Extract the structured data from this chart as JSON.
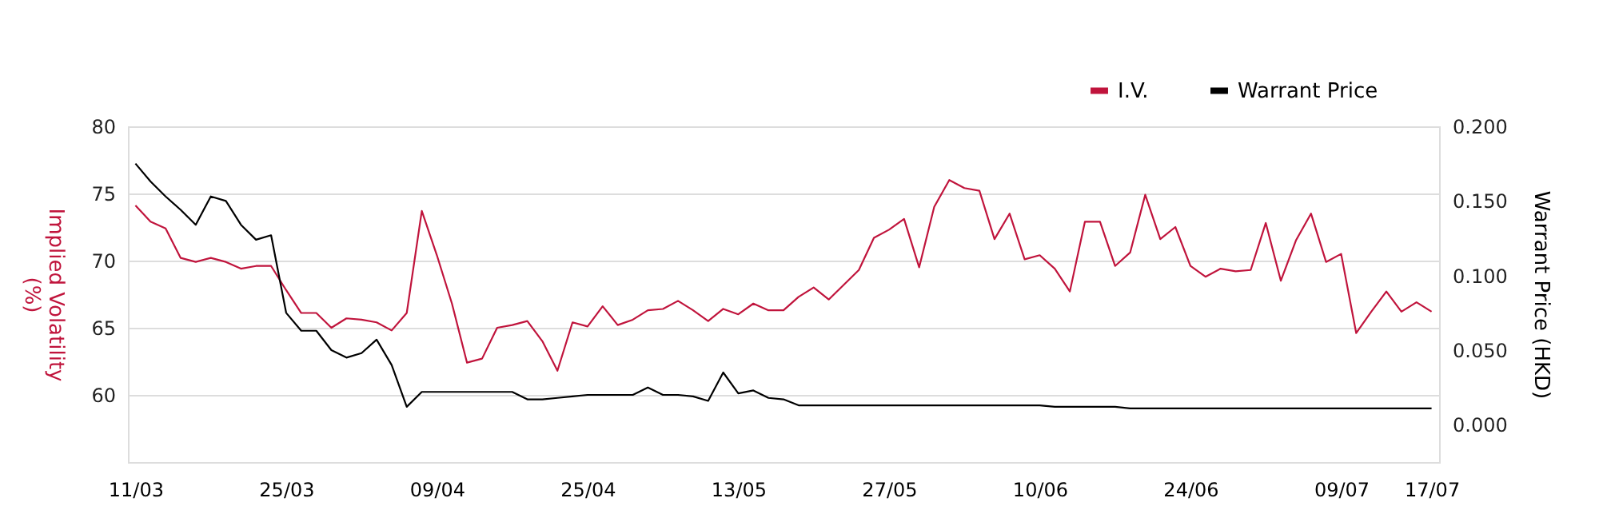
{
  "chart_data": {
    "type": "line",
    "ylabel": "Implied Volatility (%)",
    "y2label": "Warrant Price (HKD)",
    "categories": [
      "11/03",
      null,
      null,
      null,
      null,
      null,
      null,
      null,
      null,
      null,
      "25/03",
      null,
      null,
      null,
      null,
      null,
      null,
      null,
      null,
      null,
      "09/04",
      null,
      null,
      null,
      null,
      null,
      null,
      null,
      null,
      null,
      "25/04",
      null,
      null,
      null,
      null,
      null,
      null,
      null,
      null,
      null,
      "13/05",
      null,
      null,
      null,
      null,
      null,
      null,
      null,
      null,
      null,
      "27/05",
      null,
      null,
      null,
      null,
      null,
      null,
      null,
      null,
      null,
      "10/06",
      null,
      null,
      null,
      null,
      null,
      null,
      null,
      null,
      null,
      "24/06",
      null,
      null,
      null,
      null,
      null,
      null,
      null,
      null,
      null,
      "09/07",
      null,
      null,
      null,
      null,
      null,
      "17/07"
    ],
    "series": [
      {
        "name": "I.V.",
        "color": "#c0143c",
        "values": [
          74.1,
          72.9,
          72.4,
          70.2,
          69.9,
          70.2,
          69.9,
          69.4,
          69.6,
          69.6,
          67.8,
          66.1,
          66.1,
          65.0,
          65.7,
          65.6,
          65.4,
          64.8,
          66.1,
          73.7,
          70.4,
          66.8,
          62.4,
          62.7,
          65.0,
          65.2,
          65.5,
          64.0,
          61.8,
          65.4,
          65.1,
          66.6,
          65.2,
          65.6,
          66.3,
          66.4,
          67.0,
          66.3,
          65.5,
          66.4,
          66.0,
          66.8,
          66.3,
          66.3,
          67.3,
          68.0,
          67.1,
          68.2,
          69.3,
          71.7,
          72.3,
          73.1,
          69.5,
          74.0,
          76.0,
          75.4,
          75.2,
          71.6,
          73.5,
          70.1,
          70.4,
          69.4,
          67.7,
          72.9,
          72.9,
          69.6,
          70.6,
          74.9,
          71.6,
          72.5,
          69.6,
          68.8,
          69.4,
          69.2,
          69.3,
          72.8,
          68.5,
          71.5,
          73.5,
          69.9,
          70.5,
          64.6,
          66.2,
          67.7,
          66.2,
          66.9,
          66.2
        ]
      },
      {
        "name": "Warrant Price",
        "color": "#000000",
        "axis": "y2",
        "values": [
          0.175,
          0.163,
          0.153,
          0.144,
          0.134,
          0.153,
          0.15,
          0.134,
          0.124,
          0.127,
          0.075,
          0.063,
          0.063,
          0.05,
          0.045,
          0.048,
          0.057,
          0.04,
          0.012,
          0.022,
          0.022,
          0.022,
          0.022,
          0.022,
          0.022,
          0.022,
          0.017,
          0.017,
          0.018,
          0.019,
          0.02,
          0.02,
          0.02,
          0.02,
          0.025,
          0.02,
          0.02,
          0.019,
          0.016,
          0.035,
          0.021,
          0.023,
          0.018,
          0.017,
          0.013,
          0.013,
          0.013,
          0.013,
          0.013,
          0.013,
          0.013,
          0.013,
          0.013,
          0.013,
          0.013,
          0.013,
          0.013,
          0.013,
          0.013,
          0.013,
          0.013,
          0.012,
          0.012,
          0.012,
          0.012,
          0.012,
          0.011,
          0.011,
          0.011,
          0.011,
          0.011,
          0.011,
          0.011,
          0.011,
          0.011,
          0.011,
          0.011,
          0.011,
          0.011,
          0.011,
          0.011,
          0.011,
          0.011,
          0.011,
          0.011,
          0.011,
          0.011
        ]
      }
    ],
    "ylim": [
      55,
      80
    ],
    "yticks": [
      60,
      65,
      70,
      75,
      80
    ],
    "y2lim": [
      -0.025,
      0.2
    ],
    "y2ticks": [
      {
        "value": 0,
        "label": "0.000"
      },
      {
        "value": 0.05,
        "label": "0.050"
      },
      {
        "value": 0.1,
        "label": "0.100"
      },
      {
        "value": 0.15,
        "label": "0.150"
      },
      {
        "value": 0.2,
        "label": "0.200"
      }
    ],
    "grid": "y",
    "legend": "top right",
    "marker": "none",
    "line_style": "solid"
  }
}
